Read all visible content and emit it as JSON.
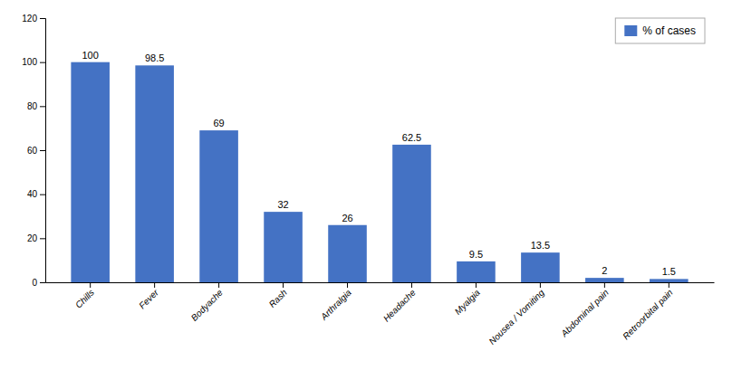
{
  "chart_data": {
    "type": "bar",
    "categories": [
      "Chills",
      "Fever",
      "Bodyache",
      "Rash",
      "Arthralgia",
      "Headache",
      "Myalgia",
      "Nousea / Vomiting",
      "Abdominal pain",
      "Retroorbital pain"
    ],
    "series": [
      {
        "name": "% of cases",
        "color": "#4472c4",
        "values": [
          100,
          98.5,
          69,
          32,
          26,
          62.5,
          9.5,
          13.5,
          2,
          1.5
        ]
      }
    ],
    "ylim": [
      0,
      120
    ],
    "yticks": [
      0,
      20,
      40,
      60,
      80,
      100,
      120
    ],
    "grid": false,
    "legend": "upper right",
    "data_labels": true
  }
}
